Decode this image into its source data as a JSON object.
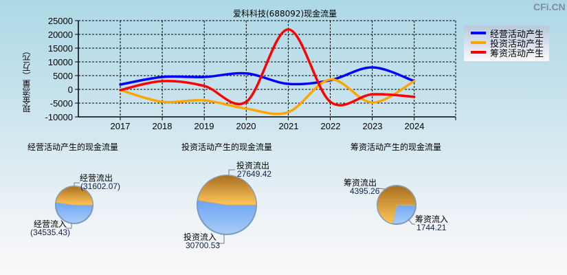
{
  "watermark": "CFi.CN",
  "line_chart": {
    "title": "爱科科技(688092)现金流量",
    "ylabel": "现金流量（万元）",
    "y_ticks": [
      "25000",
      "20000",
      "15000",
      "10000",
      "5000",
      "0",
      "-5000",
      "-10000"
    ],
    "x_ticks": [
      "2017",
      "2018",
      "2019",
      "2020",
      "2021",
      "2022",
      "2023",
      "2024"
    ],
    "legend": [
      {
        "label": "经营活动产生",
        "color": "#0000ff"
      },
      {
        "label": "投资活动产生",
        "color": "#ffa500"
      },
      {
        "label": "筹资活动产生",
        "color": "#ff0000"
      }
    ]
  },
  "pies": [
    {
      "title": "经营活动产生的现金流量",
      "outflow_label": "经营流出",
      "outflow_value": "(31602.07)",
      "inflow_label": "经营流入",
      "inflow_value": "(34535.43)"
    },
    {
      "title": "投资活动产生的现金流量",
      "outflow_label": "投资流出",
      "outflow_value": "27649.42",
      "inflow_label": "投资流入",
      "inflow_value": "30700.53"
    },
    {
      "title": "筹资活动产生的现金流量",
      "outflow_label": "筹资流出",
      "outflow_value": "4395.26",
      "inflow_label": "筹资流入",
      "inflow_value": "1744.21"
    }
  ],
  "chart_data": [
    {
      "type": "line",
      "title": "爱科科技(688092)现金流量",
      "xlabel": "",
      "ylabel": "现金流量（万元）",
      "categories": [
        "2017",
        "2018",
        "2019",
        "2020",
        "2021",
        "2022",
        "2023",
        "2024"
      ],
      "ylim": [
        -10000,
        25000
      ],
      "grid": true,
      "legend_position": "right-top",
      "series": [
        {
          "name": "经营活动产生",
          "color": "#0000ff",
          "values": [
            1750,
            4500,
            4500,
            5800,
            2000,
            3300,
            8000,
            3000
          ]
        },
        {
          "name": "投资活动产生",
          "color": "#ffa500",
          "values": [
            -250,
            -4500,
            -4000,
            -7000,
            -8300,
            3600,
            -4800,
            3000
          ]
        },
        {
          "name": "筹资活动产生",
          "color": "#ff0000",
          "values": [
            -250,
            3000,
            1250,
            -4500,
            21800,
            -4500,
            -1800,
            -2700
          ]
        }
      ]
    },
    {
      "type": "pie",
      "title": "经营活动产生的现金流量",
      "categories": [
        "经营流出",
        "经营流入"
      ],
      "values": [
        31602.07,
        34535.43
      ]
    },
    {
      "type": "pie",
      "title": "投资活动产生的现金流量",
      "categories": [
        "投资流出",
        "投资流入"
      ],
      "values": [
        27649.42,
        30700.53
      ]
    },
    {
      "type": "pie",
      "title": "筹资活动产生的现金流量",
      "categories": [
        "筹资流出",
        "筹资流入"
      ],
      "values": [
        4395.26,
        1744.21
      ]
    }
  ]
}
